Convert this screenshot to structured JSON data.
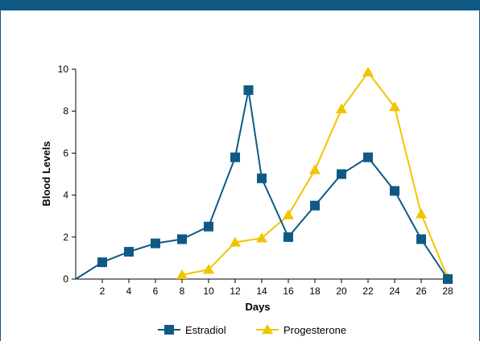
{
  "chart_data": {
    "type": "line",
    "xlabel": "Days",
    "ylabel": "Blood Levels",
    "xlim": [
      0,
      28
    ],
    "ylim": [
      0,
      10
    ],
    "x_ticks": [
      2,
      4,
      6,
      8,
      10,
      12,
      14,
      16,
      18,
      20,
      22,
      24,
      26,
      28
    ],
    "y_ticks": [
      0,
      2,
      4,
      6,
      8,
      10
    ],
    "grid": false,
    "legend_position": "bottom-center",
    "series": [
      {
        "name": "Estradiol",
        "color": "#0f5a85",
        "marker": "square",
        "x": [
          0,
          2,
          4,
          6,
          8,
          10,
          12,
          13,
          14,
          16,
          18,
          20,
          22,
          24,
          26,
          28
        ],
        "y": [
          0,
          0.8,
          1.3,
          1.7,
          1.9,
          2.5,
          5.8,
          9.0,
          4.8,
          2.0,
          3.5,
          5.0,
          5.8,
          4.2,
          1.9,
          0
        ],
        "marker_from_index": 1
      },
      {
        "name": "Progesterone",
        "color": "#f2c400",
        "marker": "triangle",
        "x": [
          8,
          10,
          12,
          14,
          16,
          18,
          20,
          22,
          24,
          26,
          28
        ],
        "y": [
          0.2,
          0.45,
          1.75,
          1.95,
          3.05,
          5.2,
          8.1,
          9.85,
          8.2,
          3.1,
          0.05
        ],
        "marker_from_index": 0
      }
    ]
  }
}
